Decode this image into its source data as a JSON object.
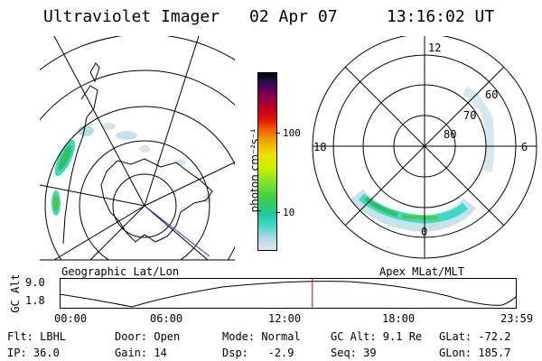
{
  "header": {
    "instrument": "Ultraviolet Imager",
    "date": "02 Apr 07",
    "time": "13:16:02 UT"
  },
  "left_map": {
    "caption": "Geographic Lat/Lon"
  },
  "color_scale": {
    "unit_label": "photon cm⁻²s⁻¹",
    "ticks": [
      "100",
      "10"
    ],
    "scale": "log",
    "colors": [
      "#dfe8f0",
      "#b8d8e8",
      "#40d8c8",
      "#20c8a0",
      "#40d040",
      "#80e030",
      "#c8f000",
      "#f0e000",
      "#f0a000",
      "#f06000",
      "#e01010",
      "#c00020",
      "#900040",
      "#500060",
      "#201040",
      "#000000"
    ]
  },
  "right_map": {
    "caption": "Apex MLat/MLT",
    "mlt_labels": {
      "top": "12",
      "left": "18",
      "right": "6",
      "bottom": "0"
    },
    "lat_labels": [
      "60",
      "70",
      "80"
    ]
  },
  "altitude_strip": {
    "axis_label": "GC Alt",
    "y_ticks": [
      "9.0",
      "1.8"
    ],
    "x_ticks": [
      "00:00",
      "06:00",
      "12:00",
      "18:00",
      "23:59"
    ],
    "current_time_hours": 13.27,
    "marker_color": "#e00000"
  },
  "info": {
    "flt": "Flt: LBHL",
    "ip": "IP: 36.0",
    "door": "Door: Open",
    "gain": "Gain: 14",
    "mode": "Mode: Normal",
    "dsp": "Dsp:   -2.9",
    "gc_alt": "GC Alt: 9.1 Re",
    "seq": "Seq: 39",
    "glat": "GLat: -72.2",
    "glon": "GLon: 185.7"
  }
}
